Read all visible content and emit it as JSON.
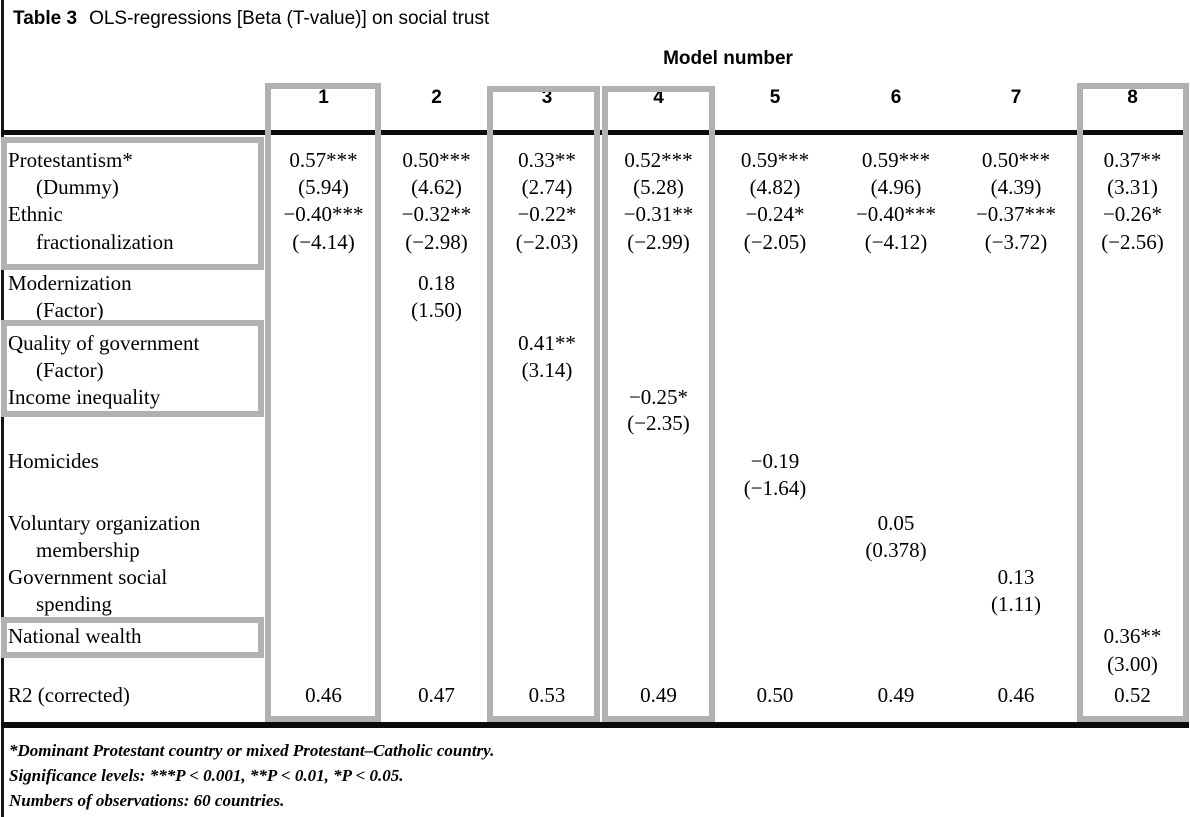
{
  "title": {
    "label": "Table 3",
    "text": "OLS-regressions [Beta (T-value)] on social trust"
  },
  "header": {
    "group_label": "Model number",
    "columns": [
      "1",
      "2",
      "3",
      "4",
      "5",
      "6",
      "7",
      "8"
    ]
  },
  "table": {
    "lines": [
      {
        "label": "Protestantism*",
        "indent": false,
        "values": [
          "0.57***",
          "0.50***",
          "0.33**",
          "0.52***",
          "0.59***",
          "0.59***",
          "0.50***",
          "0.37**"
        ]
      },
      {
        "label": "(Dummy)",
        "indent": true,
        "values": [
          "(5.94)",
          "(4.62)",
          "(2.74)",
          "(5.28)",
          "(4.82)",
          "(4.96)",
          "(4.39)",
          "(3.31)"
        ]
      },
      {
        "label": "Ethnic",
        "indent": false,
        "values": [
          "−0.40***",
          "−0.32**",
          "−0.22*",
          "−0.31**",
          "−0.24*",
          "−0.40***",
          "−0.37***",
          "−0.26*"
        ]
      },
      {
        "label": "fractionalization",
        "indent": true,
        "values": [
          "(−4.14)",
          "(−2.98)",
          "(−2.03)",
          "(−2.99)",
          "(−2.05)",
          "(−4.12)",
          "(−3.72)",
          "(−2.56)"
        ]
      },
      {
        "label": "Modernization",
        "indent": false,
        "values": [
          "",
          "0.18",
          "",
          "",
          "",
          "",
          "",
          ""
        ]
      },
      {
        "label": "(Factor)",
        "indent": true,
        "values": [
          "",
          "(1.50)",
          "",
          "",
          "",
          "",
          "",
          ""
        ]
      },
      {
        "label": "Quality of government",
        "indent": false,
        "values": [
          "",
          "",
          "0.41**",
          "",
          "",
          "",
          "",
          ""
        ]
      },
      {
        "label": "(Factor)",
        "indent": true,
        "values": [
          "",
          "",
          "(3.14)",
          "",
          "",
          "",
          "",
          ""
        ]
      },
      {
        "label": "Income inequality",
        "indent": false,
        "values": [
          "",
          "",
          "",
          "−0.25*",
          "",
          "",
          "",
          ""
        ]
      },
      {
        "label": "",
        "indent": false,
        "values": [
          "",
          "",
          "",
          "(−2.35)",
          "",
          "",
          "",
          ""
        ]
      },
      {
        "label": "Homicides",
        "indent": false,
        "values": [
          "",
          "",
          "",
          "",
          "−0.19",
          "",
          "",
          ""
        ]
      },
      {
        "label": "",
        "indent": false,
        "values": [
          "",
          "",
          "",
          "",
          "(−1.64)",
          "",
          "",
          ""
        ]
      },
      {
        "label": "Voluntary organization",
        "indent": false,
        "values": [
          "",
          "",
          "",
          "",
          "",
          "0.05",
          "",
          ""
        ]
      },
      {
        "label": "membership",
        "indent": true,
        "values": [
          "",
          "",
          "",
          "",
          "",
          "(0.378)",
          "",
          ""
        ]
      },
      {
        "label": "Government social",
        "indent": false,
        "values": [
          "",
          "",
          "",
          "",
          "",
          "",
          "0.13",
          ""
        ]
      },
      {
        "label": "spending",
        "indent": true,
        "values": [
          "",
          "",
          "",
          "",
          "",
          "",
          "(1.11)",
          ""
        ]
      },
      {
        "label": "National wealth",
        "indent": false,
        "values": [
          "",
          "",
          "",
          "",
          "",
          "",
          "",
          "0.36**"
        ]
      },
      {
        "label": "",
        "indent": false,
        "values": [
          "",
          "",
          "",
          "",
          "",
          "",
          "",
          "(3.00)"
        ]
      },
      {
        "label": "R2 (corrected)",
        "indent": false,
        "values": [
          "0.46",
          "0.47",
          "0.53",
          "0.49",
          "0.50",
          "0.49",
          "0.46",
          "0.52"
        ]
      }
    ]
  },
  "highlights": [
    {
      "name": "model-1-column"
    },
    {
      "name": "model-3-column"
    },
    {
      "name": "model-4-column"
    },
    {
      "name": "model-8-column"
    },
    {
      "name": "protestantism-ethnic-labels"
    },
    {
      "name": "quality-of-government-income-inequality-labels"
    },
    {
      "name": "national-wealth-label"
    }
  ],
  "footnotes": [
    "*Dominant Protestant country or mixed Protestant–Catholic country.",
    "Significance levels: ***P < 0.001, **P < 0.01, *P < 0.05.",
    "Numbers of observations: 60 countries."
  ]
}
